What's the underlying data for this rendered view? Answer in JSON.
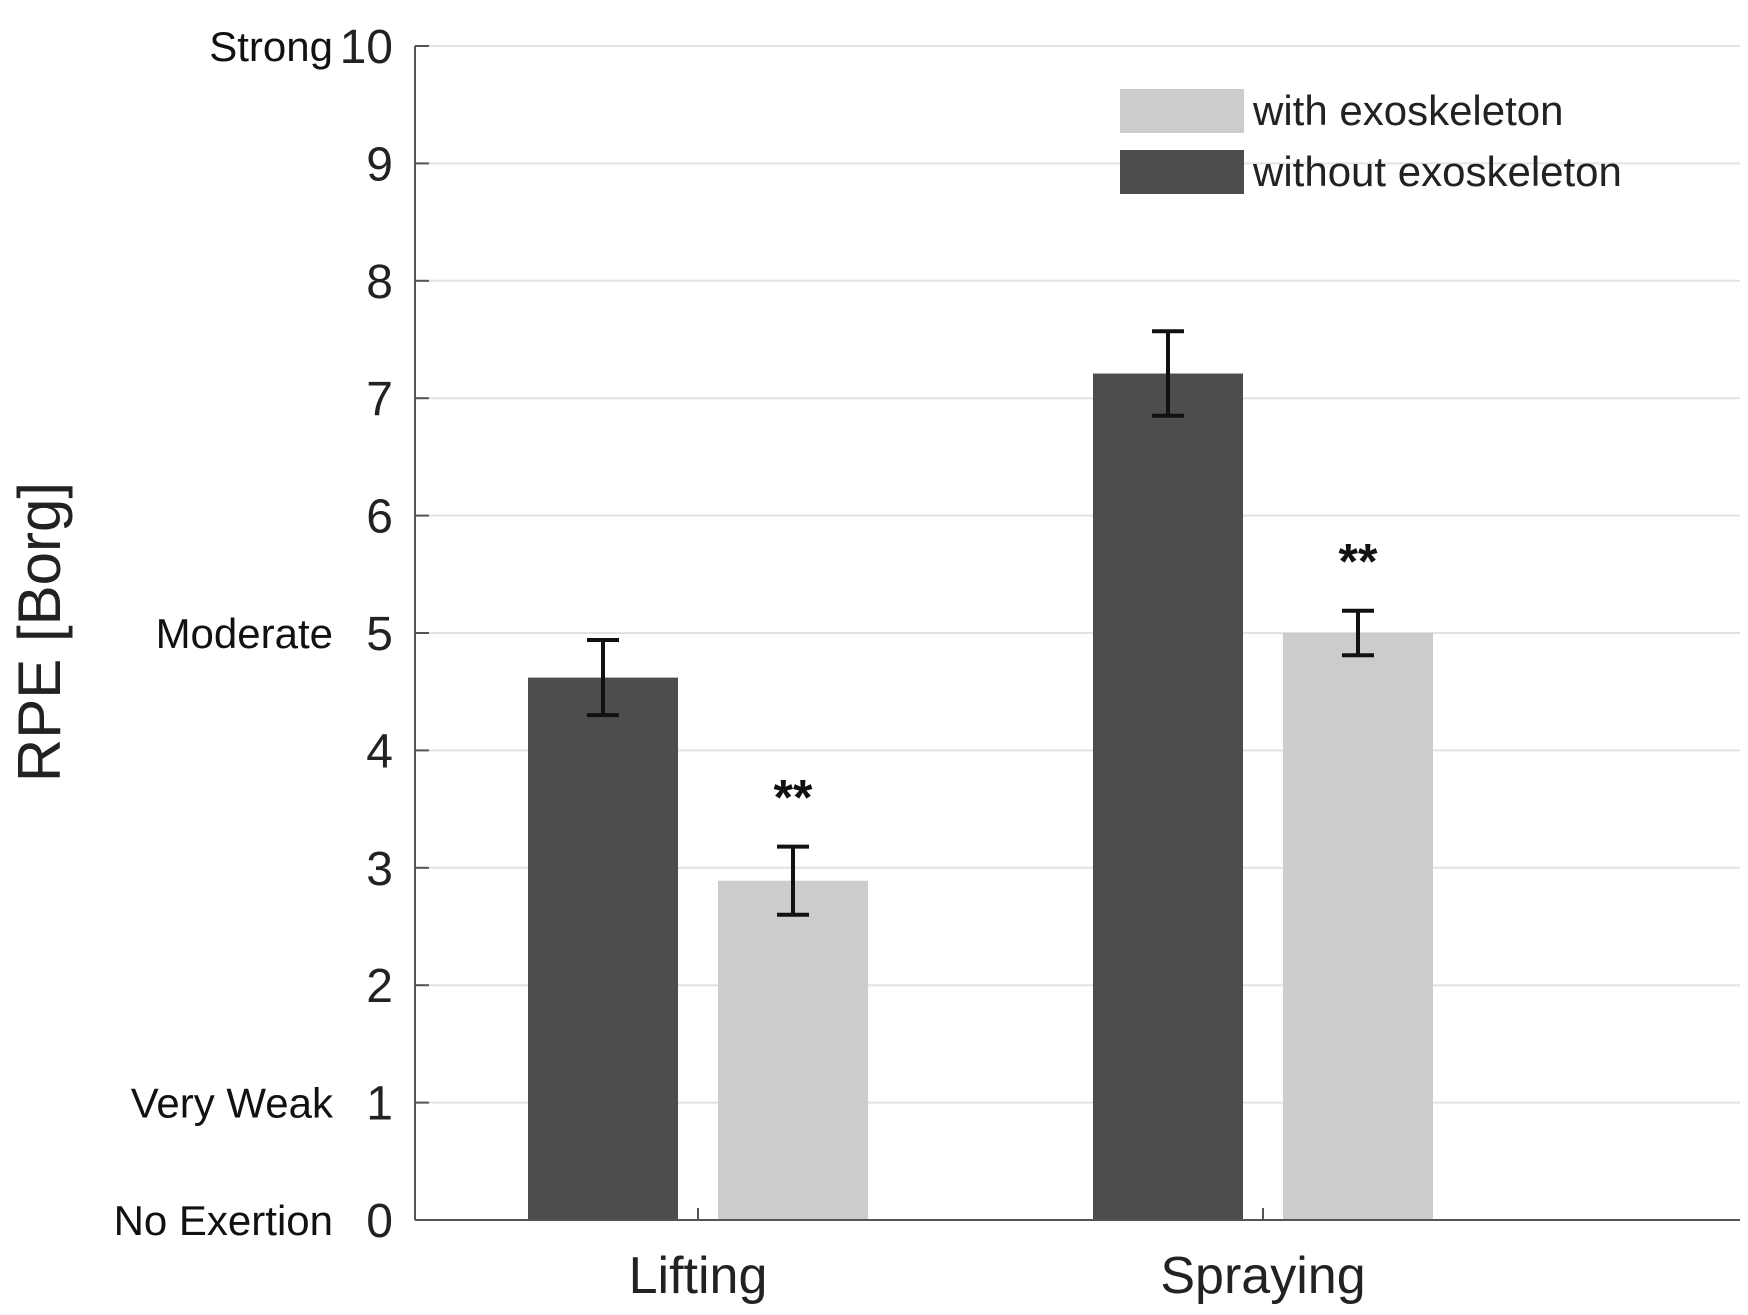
{
  "chart_data": {
    "type": "bar",
    "title": "",
    "xlabel": "",
    "ylabel": "RPE [Borg]",
    "ylim": [
      0,
      10
    ],
    "yticks": [
      0,
      1,
      2,
      3,
      4,
      5,
      6,
      7,
      8,
      9,
      10
    ],
    "ytick_labels": [
      "0",
      "1",
      "2",
      "3",
      "4",
      "5",
      "6",
      "7",
      "8",
      "9",
      "10"
    ],
    "y_descriptors": [
      {
        "value": 0,
        "label": "No Exertion"
      },
      {
        "value": 1,
        "label": "Very Weak"
      },
      {
        "value": 5,
        "label": "Moderate"
      },
      {
        "value": 10,
        "label": "Strong"
      }
    ],
    "categories": [
      "Lifting",
      "Spraying"
    ],
    "grid": "horizontal",
    "legend_position": "top-right",
    "series": [
      {
        "name": "without exoskeleton",
        "color": "#4d4d4d",
        "values": [
          4.62,
          7.21
        ],
        "errors": [
          0.32,
          0.36
        ],
        "significance": [
          "",
          ""
        ]
      },
      {
        "name": "with exoskeleton",
        "color": "#cccccc",
        "values": [
          2.89,
          5.0
        ],
        "errors": [
          0.29,
          0.19
        ],
        "significance": [
          "**",
          "**"
        ]
      }
    ],
    "legend_order": [
      "with exoskeleton",
      "without exoskeleton"
    ]
  }
}
